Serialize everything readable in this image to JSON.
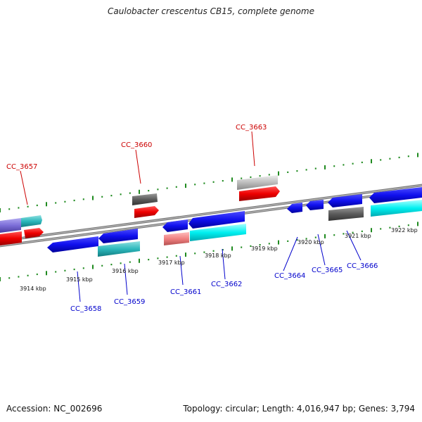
{
  "title": "Caulobacter crescentus CB15, complete genome",
  "footer": {
    "accession": "Accession: NC_002696",
    "summary": "Topology: circular; Length: 4,016,947 bp; Genes: 3,794"
  },
  "colors": {
    "backbone": "#8c8c8c",
    "tick": "#1f8a1f",
    "label_top": "#cc0000",
    "label_bottom": "#0000cc",
    "kbp_text": "#111111"
  },
  "kbp_labels": [
    "3914 kbp",
    "3915 kbp",
    "3916 kbp",
    "3917 kbp",
    "3918 kbp",
    "3919 kbp",
    "3920 kbp",
    "3921 kbp",
    "3922 kbp"
  ],
  "gene_labels_top": [
    "CC_3657",
    "CC_3660",
    "CC_3663"
  ],
  "gene_labels_bottom": [
    "CC_3658",
    "CC_3659",
    "CC_3661",
    "CC_3662",
    "CC_3664",
    "CC_3665",
    "CC_3666"
  ]
}
